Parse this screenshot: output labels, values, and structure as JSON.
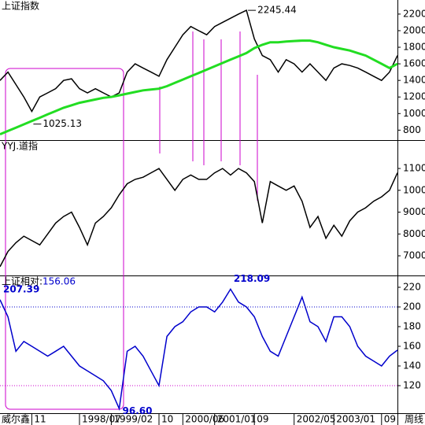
{
  "chart_data": [
    {
      "type": "line",
      "title": "上证指数",
      "ylim": [
        680,
        2370
      ],
      "yticks": [
        800,
        1000,
        1200,
        1400,
        1600,
        1800,
        2000,
        2200
      ],
      "series": [
        {
          "color": "#000000",
          "values": [
            1400,
            1500,
            1350,
            1200,
            1025.13,
            1200,
            1250,
            1300,
            1400,
            1420,
            1300,
            1250,
            1300,
            1250,
            1200,
            1250,
            1500,
            1600,
            1550,
            1500,
            1450,
            1650,
            1800,
            1950,
            2050,
            2000,
            1950,
            2050,
            2100,
            2150,
            2200,
            2245.44,
            1900,
            1700,
            1650,
            1500,
            1650,
            1600,
            1500,
            1600,
            1500,
            1400,
            1550,
            1600,
            1580,
            1550,
            1500,
            1450,
            1400,
            1500,
            1700
          ],
          "value_labels": [
            null,
            null,
            null,
            null,
            "1025.13",
            null,
            null,
            null,
            null,
            null,
            null,
            null,
            null,
            null,
            null,
            null,
            null,
            null,
            null,
            null,
            null,
            null,
            null,
            null,
            null,
            null,
            null,
            null,
            null,
            null,
            null,
            "2245.44",
            null,
            null,
            null,
            null,
            null,
            null,
            null,
            null,
            null,
            null,
            null,
            null,
            null,
            null,
            null,
            null,
            null,
            null,
            null
          ]
        },
        {
          "color": "#22dd22",
          "values": [
            750,
            790,
            830,
            870,
            910,
            950,
            990,
            1030,
            1070,
            1100,
            1130,
            1150,
            1170,
            1190,
            1200,
            1220,
            1240,
            1260,
            1280,
            1290,
            1300,
            1330,
            1370,
            1410,
            1450,
            1490,
            1530,
            1570,
            1610,
            1650,
            1690,
            1730,
            1790,
            1830,
            1860,
            1860,
            1870,
            1875,
            1880,
            1880,
            1860,
            1830,
            1800,
            1780,
            1760,
            1730,
            1700,
            1650,
            1600,
            1550,
            1600
          ]
        }
      ]
    },
    {
      "type": "line",
      "title": "YYJ.道指",
      "ylim": [
        6100,
        12300
      ],
      "yticks": [
        7000,
        8000,
        9000,
        10000,
        11000
      ],
      "series": [
        {
          "color": "#000000",
          "values": [
            6500,
            7200,
            7600,
            7900,
            7700,
            7500,
            8000,
            8500,
            8800,
            9000,
            8300,
            7500,
            8500,
            8800,
            9200,
            9800,
            10300,
            10500,
            10600,
            10800,
            11000,
            10500,
            10000,
            10500,
            10700,
            10500,
            10500,
            10800,
            11000,
            10700,
            11000,
            10800,
            10400,
            8500,
            10400,
            10200,
            10000,
            10200,
            9500,
            8300,
            8800,
            7800,
            8400,
            7900,
            8600,
            9000,
            9200,
            9500,
            9700,
            10000,
            10800
          ]
        }
      ]
    },
    {
      "type": "line",
      "title": "上证相对:",
      "ylim": [
        92,
        232
      ],
      "yticks": [
        120,
        140,
        160,
        180,
        200,
        220
      ],
      "ref_lines": [
        {
          "value": 200,
          "color": "#0000cc"
        },
        {
          "value": 120,
          "color": "#cc00cc"
        }
      ],
      "categories": [
        null,
        null,
        null,
        null,
        "11",
        null,
        null,
        null,
        null,
        null,
        "1998/07",
        null,
        null,
        null,
        "1999/02",
        null,
        null,
        null,
        null,
        null,
        "10",
        null,
        null,
        "2000/06",
        null,
        null,
        null,
        "2001/01",
        null,
        null,
        null,
        null,
        "09",
        null,
        null,
        null,
        null,
        "2002/05",
        null,
        null,
        null,
        null,
        "2003/01",
        null,
        null,
        null,
        null,
        null,
        "09",
        null,
        null
      ],
      "series": [
        {
          "color": "#0000cc",
          "values": [
            207.39,
            190,
            155,
            165,
            160,
            155,
            150,
            155,
            160,
            150,
            140,
            135,
            130,
            125,
            115,
            96.6,
            155,
            160,
            150,
            135,
            120,
            170,
            180,
            185,
            195,
            200,
            200,
            195,
            205,
            218.09,
            205,
            200,
            190,
            170,
            155,
            150,
            170,
            190,
            210,
            185,
            180,
            165,
            190,
            190,
            180,
            160,
            150,
            145,
            140,
            150,
            156.06
          ],
          "value_labels": [
            "207.39",
            null,
            null,
            null,
            null,
            null,
            null,
            null,
            null,
            null,
            null,
            null,
            null,
            null,
            null,
            "96.60",
            null,
            null,
            null,
            null,
            null,
            null,
            null,
            null,
            null,
            null,
            null,
            null,
            null,
            "218.09",
            null,
            null,
            null,
            null,
            null,
            null,
            null,
            null,
            null,
            null,
            null,
            null,
            null,
            null,
            null,
            null,
            null,
            null,
            null,
            null,
            null
          ]
        }
      ]
    }
  ],
  "footer": {
    "brand": "威尔鑫",
    "period": "周线"
  }
}
